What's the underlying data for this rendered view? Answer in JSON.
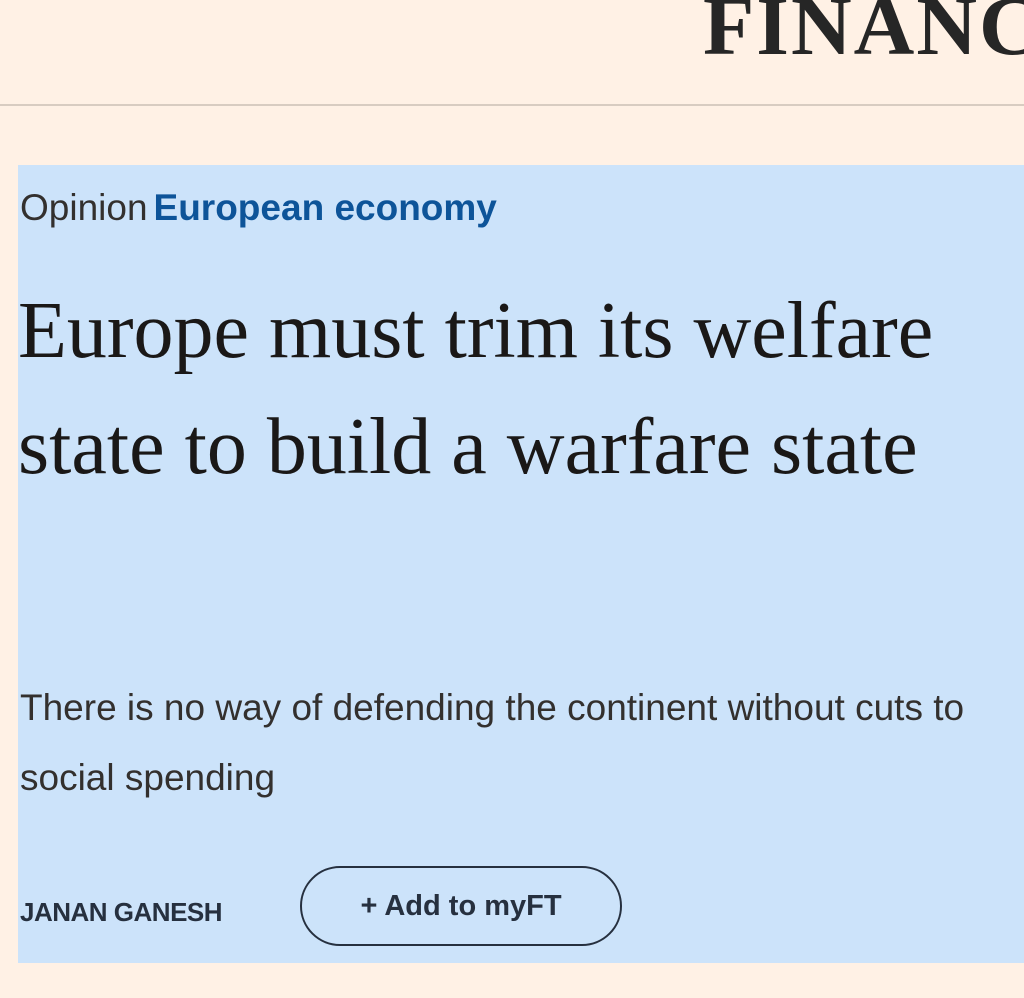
{
  "masthead": "FINANC",
  "topic": {
    "label": "Opinion",
    "name": "European economy"
  },
  "headline": "Europe must trim its welfare state to build a warfare state",
  "standfirst": "There is no way of defending the continent without cuts to social spending",
  "byline": "JANAN GANESH",
  "button": "+ Add to myFT"
}
